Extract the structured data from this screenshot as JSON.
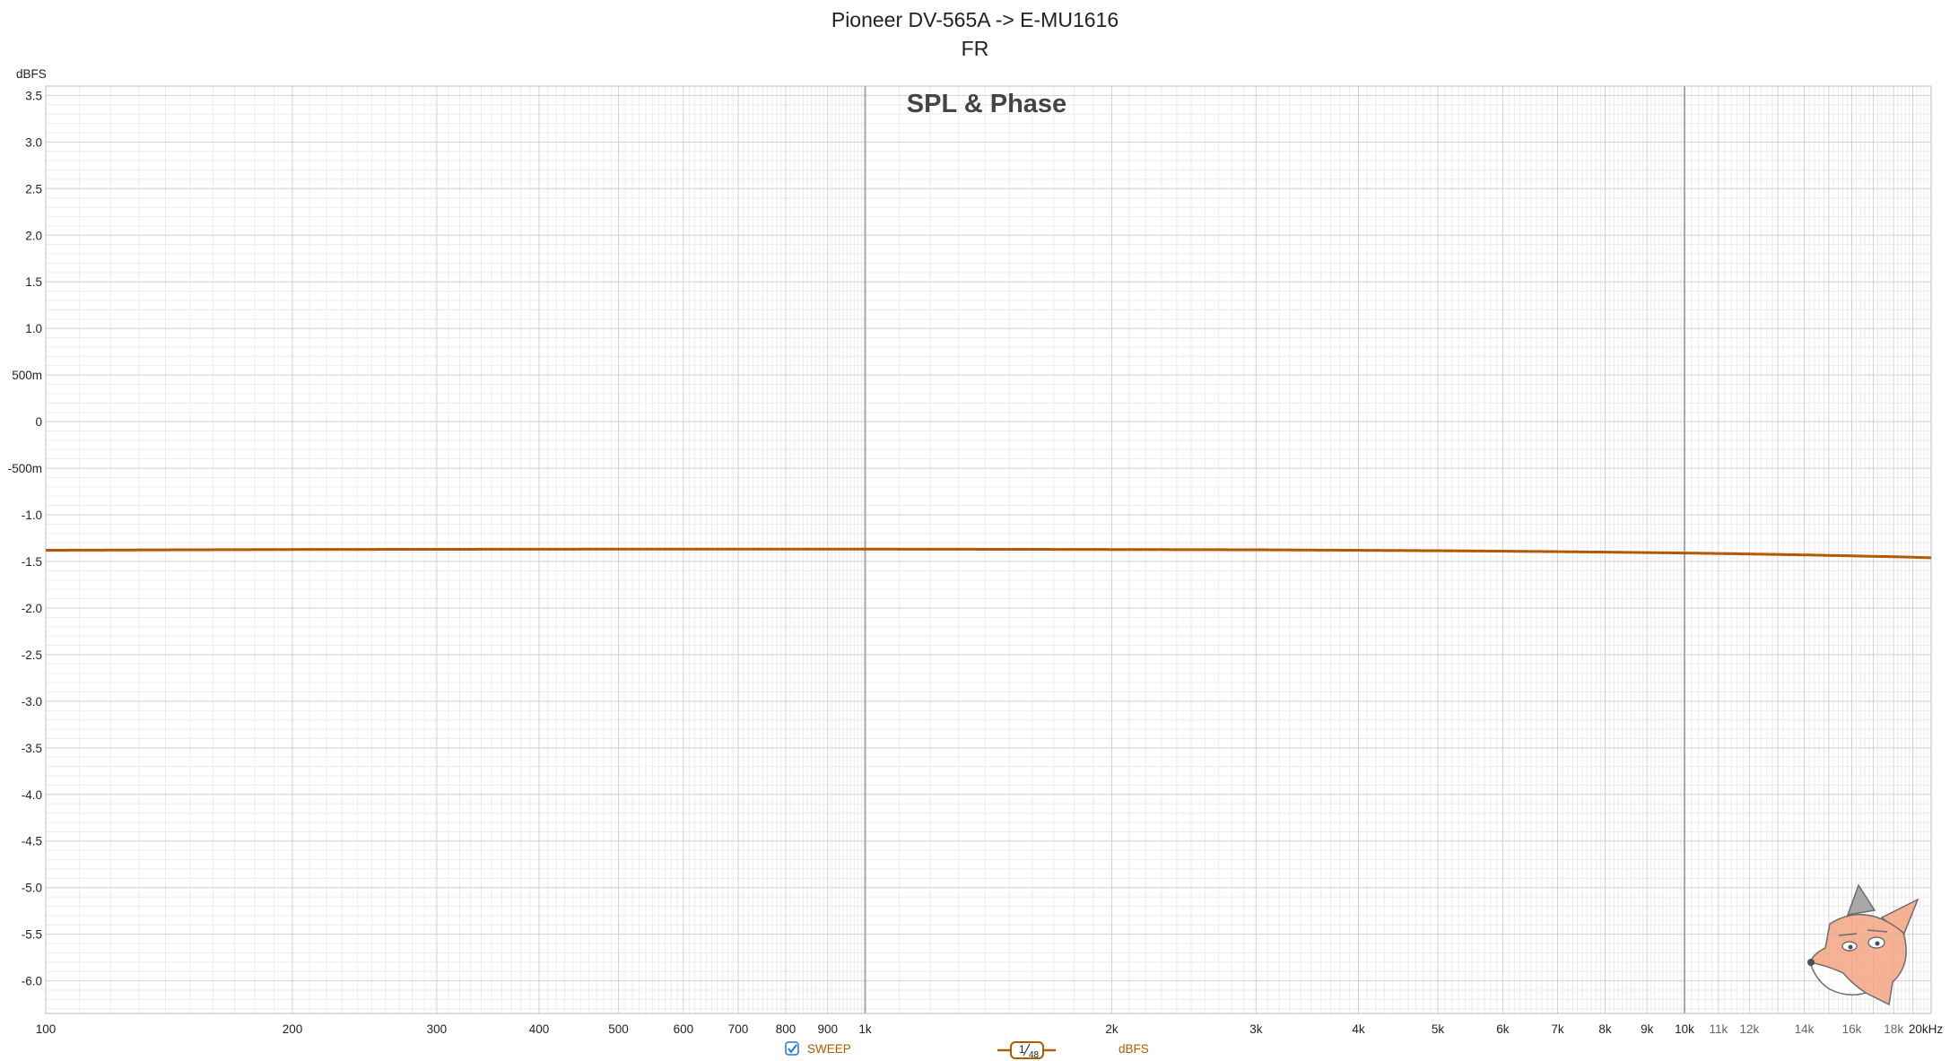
{
  "chart_data": {
    "type": "line",
    "title": "Pioneer DV-565A -> E-MU1616",
    "subtitle": "FR",
    "plot_label": "SPL & Phase",
    "ylabel": "dBFS",
    "xscale": "log",
    "xlim": [
      100,
      20000
    ],
    "ylim": [
      -6.35,
      3.6
    ],
    "yticks": [
      3.5,
      3.0,
      2.5,
      2.0,
      1.5,
      1.0,
      0.5,
      0,
      -0.5,
      -1.0,
      -1.5,
      -2.0,
      -2.5,
      -3.0,
      -3.5,
      -4.0,
      -4.5,
      -5.0,
      -5.5,
      -6.0
    ],
    "ytick_labels": [
      "3.5",
      "3.0",
      "2.5",
      "2.0",
      "1.5",
      "1.0",
      "500m",
      "0",
      "-500m",
      "-1.0",
      "-1.5",
      "-2.0",
      "-2.5",
      "-3.0",
      "-3.5",
      "-4.0",
      "-4.5",
      "-5.0",
      "-5.5",
      "-6.0"
    ],
    "xticks_major": [
      100,
      200,
      300,
      400,
      500,
      600,
      700,
      800,
      900,
      1000,
      2000,
      3000,
      4000,
      5000,
      6000,
      7000,
      8000,
      9000,
      10000
    ],
    "xtick_labels_major": [
      "100",
      "200",
      "300",
      "400",
      "500",
      "600",
      "700",
      "800",
      "900",
      "1k",
      "2k",
      "3k",
      "4k",
      "5k",
      "6k",
      "7k",
      "8k",
      "9k",
      "10k"
    ],
    "xticks_minor": [
      11000,
      12000,
      14000,
      16000,
      18000,
      20000
    ],
    "xtick_labels_minor": [
      "11k",
      "12k",
      "14k",
      "16k",
      "18k",
      "20kHz"
    ],
    "grid": true,
    "series": [
      {
        "name": "SWEEP",
        "color": "#b35a00",
        "x": [
          100,
          150,
          200,
          300,
          500,
          700,
          1000,
          1500,
          2000,
          3000,
          4000,
          5000,
          6000,
          7000,
          8000,
          9000,
          10000,
          12000,
          14000,
          16000,
          18000,
          20000
        ],
        "y": [
          -1.38,
          -1.375,
          -1.372,
          -1.37,
          -1.368,
          -1.368,
          -1.368,
          -1.37,
          -1.372,
          -1.375,
          -1.38,
          -1.385,
          -1.39,
          -1.395,
          -1.4,
          -1.405,
          -1.41,
          -1.42,
          -1.43,
          -1.44,
          -1.45,
          -1.46
        ]
      }
    ]
  },
  "legend": {
    "checkbox_label": "SWEEP",
    "smoothing_numerator": "1",
    "smoothing_denominator": "48",
    "unit_label": "dBFS",
    "checked": true
  },
  "colors": {
    "trace": "#b35a00",
    "grid_major": "#d2d2d2",
    "grid_minor": "#ececec",
    "grid_decade": "#a8a8a8",
    "checkbox": "#1e7bd8"
  },
  "icons": {
    "checkbox": "checkbox-checked-icon",
    "watermark": "fox-mascot-icon"
  }
}
